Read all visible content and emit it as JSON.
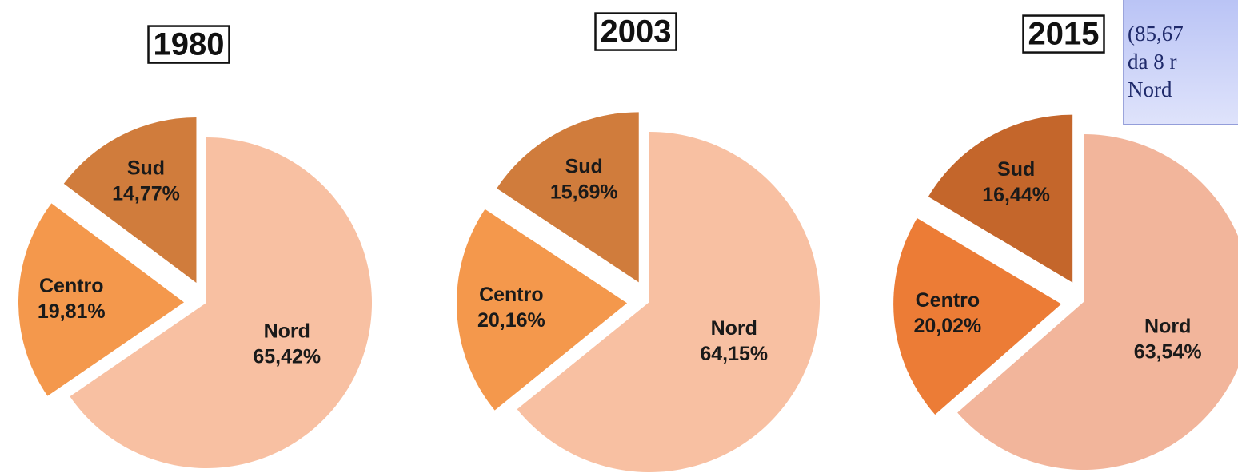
{
  "chart_data": [
    {
      "type": "pie",
      "title": "1980",
      "categories": [
        "Nord",
        "Centro",
        "Sud"
      ],
      "values": [
        65.42,
        19.81,
        14.77
      ],
      "value_labels": [
        "65,42%",
        "19,81%",
        "14,77%"
      ],
      "colors": [
        "#f8c0a2",
        "#f4984c",
        "#d07c3c"
      ]
    },
    {
      "type": "pie",
      "title": "2003",
      "categories": [
        "Nord",
        "Centro",
        "Sud"
      ],
      "values": [
        64.15,
        20.16,
        15.69
      ],
      "value_labels": [
        "64,15%",
        "20,16%",
        "15,69%"
      ],
      "colors": [
        "#f8c0a2",
        "#f4984c",
        "#d07c3c"
      ]
    },
    {
      "type": "pie",
      "title": "2015",
      "categories": [
        "Nord",
        "Centro",
        "Sud"
      ],
      "values": [
        63.54,
        20.02,
        16.44
      ],
      "value_labels": [
        "63,54%",
        "20,02%",
        "16,44%"
      ],
      "colors": [
        "#f2b59b",
        "#ec7c36",
        "#c4662b"
      ]
    }
  ],
  "note": {
    "lines": [
      "(85,67",
      "da 8 r",
      "Nord"
    ]
  }
}
